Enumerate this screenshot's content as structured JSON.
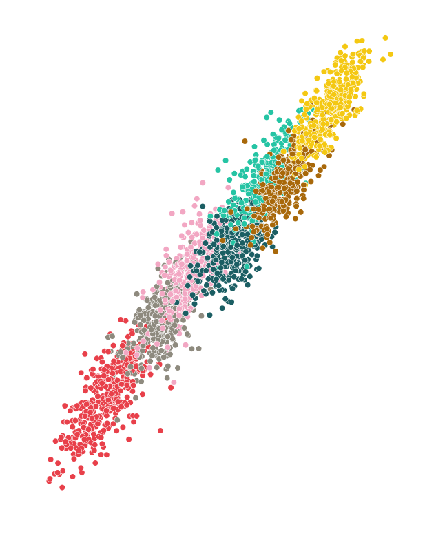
{
  "chart_data": {
    "type": "scatter",
    "title": "",
    "xlabel": "",
    "ylabel": "",
    "xlim": [
      0,
      100
    ],
    "ylim": [
      0,
      100
    ],
    "grid": false,
    "axes_visible": false,
    "legend": "none",
    "series": [
      {
        "color": "#E8404A",
        "center": [
          21,
          24
        ],
        "spread_along": 9,
        "spread_across": 3.2,
        "count": 420,
        "outliers": [
          [
            6,
            6.5
          ],
          [
            6.2,
            7
          ],
          [
            19.5,
            12
          ],
          [
            11,
            15.5
          ],
          [
            35,
            17
          ]
        ]
      },
      {
        "color": "#8E8A7E",
        "center": [
          35,
          40
        ],
        "spread_along": 7,
        "spread_across": 3,
        "count": 330,
        "outliers": [
          [
            45,
            34
          ],
          [
            42,
            37
          ],
          [
            39.5,
            30
          ]
        ]
      },
      {
        "color": "#F2A7C3",
        "center": [
          43,
          50
        ],
        "spread_along": 8,
        "spread_across": 3.2,
        "count": 300,
        "outliers": [
          [
            38.5,
            27
          ],
          [
            41,
            57
          ],
          [
            35,
            42
          ],
          [
            38,
            62
          ]
        ]
      },
      {
        "color": "#1B5E63",
        "center": [
          54,
          55
        ],
        "spread_along": 6,
        "spread_across": 3.5,
        "count": 360,
        "outliers": [
          [
            54,
            65
          ],
          [
            46,
            63.5
          ],
          [
            51,
            60
          ]
        ]
      },
      {
        "color": "#25C4A4",
        "center": [
          63,
          70
        ],
        "spread_along": 8,
        "spread_across": 2.8,
        "count": 280,
        "outliers": [
          [
            52,
            73
          ],
          [
            53,
            69
          ],
          [
            50,
            71
          ]
        ]
      },
      {
        "color": "#A8680A",
        "center": [
          68,
          69
        ],
        "spread_along": 7,
        "spread_across": 2.5,
        "count": 340,
        "outliers": [
          [
            63.5,
            56
          ],
          [
            57,
            77
          ],
          [
            79,
            74
          ]
        ]
      },
      {
        "color": "#F4C812",
        "center": [
          79,
          84
        ],
        "spread_along": 7,
        "spread_across": 2.6,
        "count": 360,
        "outliers": [
          [
            95,
            95
          ],
          [
            86.5,
            89
          ],
          [
            78,
            76
          ]
        ]
      }
    ]
  }
}
